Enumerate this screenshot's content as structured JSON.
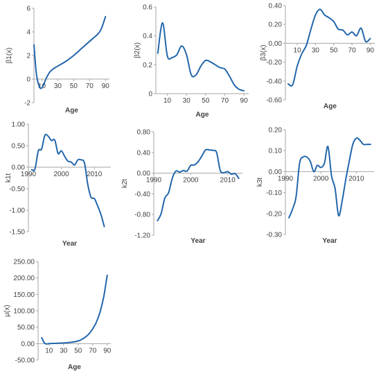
{
  "style": {
    "line_color": "#2166ac",
    "axis_color": "#a6a6a6",
    "text_color": "#404040"
  },
  "chart_data": [
    {
      "id": "beta1",
      "type": "line",
      "title": "",
      "xlabel": "Age",
      "ylabel": "β1(x)",
      "xlim": [
        0,
        95
      ],
      "ylim": [
        -2,
        6
      ],
      "xticks": [
        10,
        30,
        50,
        70,
        90
      ],
      "xtick_labels": [
        "10",
        "30",
        "50",
        "70",
        "90"
      ],
      "yticks": [
        -2,
        0,
        2,
        4,
        6
      ],
      "ytick_labels": [
        "-2",
        "0",
        "2",
        "4",
        "6"
      ],
      "x_axis_at": 0,
      "grid": false,
      "legend": "none",
      "series": [
        {
          "x": [
            0,
            3,
            6,
            9,
            12,
            15,
            20,
            25,
            30,
            40,
            50,
            60,
            70,
            80,
            85,
            90
          ],
          "y": [
            2.9,
            0.5,
            -0.5,
            -0.8,
            -0.5,
            0.0,
            0.6,
            0.9,
            1.1,
            1.5,
            2.0,
            2.6,
            3.2,
            3.8,
            4.3,
            5.3
          ]
        }
      ]
    },
    {
      "id": "beta2",
      "type": "line",
      "title": "",
      "xlabel": "Age",
      "ylabel": "β2(x)",
      "xlim": [
        -2,
        95
      ],
      "ylim": [
        0,
        0.6
      ],
      "xticks": [
        10,
        30,
        50,
        70,
        90
      ],
      "xtick_labels": [
        "10",
        "30",
        "50",
        "70",
        "90"
      ],
      "yticks": [
        0,
        0.2,
        0.4,
        0.6
      ],
      "ytick_labels": [
        "0",
        "0.2",
        "0.4",
        "0.6"
      ],
      "x_axis_at": 0,
      "grid": false,
      "legend": "none",
      "series": [
        {
          "x": [
            0,
            5,
            10,
            15,
            20,
            25,
            30,
            35,
            40,
            45,
            50,
            55,
            60,
            65,
            70,
            75,
            80,
            85,
            90
          ],
          "y": [
            0.28,
            0.49,
            0.26,
            0.25,
            0.27,
            0.33,
            0.27,
            0.13,
            0.13,
            0.19,
            0.23,
            0.22,
            0.2,
            0.18,
            0.17,
            0.12,
            0.06,
            0.03,
            0.02
          ]
        }
      ]
    },
    {
      "id": "beta3",
      "type": "line",
      "title": "",
      "xlabel": "Age",
      "ylabel": "β3(x)",
      "xlim": [
        -3,
        95
      ],
      "ylim": [
        -0.6,
        0.4
      ],
      "xticks": [
        10,
        30,
        50,
        70,
        90
      ],
      "xtick_labels": [
        "10",
        "30",
        "50",
        "70",
        "90"
      ],
      "yticks": [
        -0.6,
        -0.4,
        -0.2,
        0,
        0.2,
        0.4
      ],
      "ytick_labels": [
        "-0.60",
        "-0.40",
        "-0.20",
        "0.00",
        "0.20",
        "0.40"
      ],
      "x_axis_at": 0,
      "grid": false,
      "legend": "none",
      "series": [
        {
          "x": [
            0,
            5,
            10,
            15,
            20,
            25,
            30,
            35,
            40,
            45,
            50,
            55,
            60,
            65,
            70,
            75,
            80,
            85,
            90
          ],
          "y": [
            -0.43,
            -0.44,
            -0.24,
            -0.11,
            -0.02,
            0.15,
            0.3,
            0.36,
            0.3,
            0.27,
            0.23,
            0.15,
            0.14,
            0.09,
            0.12,
            0.08,
            0.16,
            0.02,
            0.05
          ]
        }
      ]
    },
    {
      "id": "k1t",
      "type": "line",
      "title": "",
      "xlabel": "Year",
      "ylabel": "k1t",
      "xlim": [
        1990,
        2015
      ],
      "ylim": [
        -1.5,
        1.0
      ],
      "xticks": [
        1990,
        2000,
        2010
      ],
      "xtick_labels": [
        "1990",
        "2000",
        "2010"
      ],
      "yticks": [
        -1.5,
        -1.0,
        -0.5,
        0,
        0.5,
        1.0
      ],
      "ytick_labels": [
        "-1.50",
        "-1.00",
        "-0.50",
        "0.00",
        "0.50",
        "1.00"
      ],
      "x_axis_at": 0,
      "grid": false,
      "legend": "none",
      "series": [
        {
          "x": [
            1991,
            1992,
            1993,
            1994,
            1995,
            1996,
            1997,
            1998,
            1999,
            2000,
            2001,
            2002,
            2003,
            2004,
            2005,
            2006,
            2007,
            2008,
            2009,
            2010,
            2011,
            2012,
            2013
          ],
          "y": [
            -0.06,
            -0.04,
            0.38,
            0.42,
            0.74,
            0.72,
            0.62,
            0.63,
            0.32,
            0.38,
            0.25,
            0.14,
            0.12,
            0.05,
            0.17,
            0.17,
            0.1,
            -0.4,
            -0.7,
            -0.73,
            -0.9,
            -1.1,
            -1.38
          ]
        }
      ]
    },
    {
      "id": "k2t",
      "type": "line",
      "title": "",
      "xlabel": "Year",
      "ylabel": "k2t",
      "xlim": [
        1990,
        2014
      ],
      "ylim": [
        -1.2,
        0.8
      ],
      "xticks": [
        1990,
        2000,
        2010
      ],
      "xtick_labels": [
        "1990",
        "2000",
        "2010"
      ],
      "yticks": [
        -1.2,
        -0.8,
        -0.4,
        0,
        0.4,
        0.8
      ],
      "ytick_labels": [
        "-1.20",
        "-0.80",
        "-0.40",
        "0.00",
        "0.40",
        "0.80"
      ],
      "x_axis_at": 0,
      "grid": false,
      "legend": "none",
      "series": [
        {
          "x": [
            1991,
            1992,
            1993,
            1994,
            1995,
            1996,
            1997,
            1998,
            1999,
            2000,
            2001,
            2002,
            2003,
            2004,
            2005,
            2006,
            2007,
            2008,
            2009,
            2010,
            2011,
            2012,
            2013
          ],
          "y": [
            -0.92,
            -0.78,
            -0.48,
            -0.38,
            -0.1,
            0.04,
            0.02,
            0.05,
            0.04,
            0.15,
            0.16,
            0.22,
            0.33,
            0.45,
            0.45,
            0.44,
            0.4,
            0.05,
            0.01,
            0.03,
            -0.02,
            -0.01,
            -0.1
          ]
        }
      ]
    },
    {
      "id": "k3t",
      "type": "line",
      "title": "",
      "xlabel": "Year",
      "ylabel": "k3t",
      "xlim": [
        1990,
        2015
      ],
      "ylim": [
        -0.3,
        0.2
      ],
      "xticks": [
        1990,
        2000,
        2010
      ],
      "xtick_labels": [
        "1990",
        "2000",
        "2010"
      ],
      "yticks": [
        -0.3,
        -0.2,
        -0.1,
        0,
        0.1,
        0.2
      ],
      "ytick_labels": [
        "-0.30",
        "-0.20",
        "-0.10",
        "0.00",
        "0.10",
        "0.20"
      ],
      "x_axis_at": 0,
      "grid": false,
      "legend": "none",
      "series": [
        {
          "x": [
            1991,
            1992,
            1993,
            1994,
            1995,
            1996,
            1997,
            1998,
            1999,
            2000,
            2001,
            2002,
            2003,
            2004,
            2005,
            2006,
            2007,
            2008,
            2009,
            2010,
            2011,
            2012,
            2013,
            2014
          ],
          "y": [
            -0.22,
            -0.18,
            -0.12,
            0.04,
            0.07,
            0.07,
            0.05,
            0.0,
            0.03,
            0.02,
            0.04,
            0.12,
            -0.02,
            -0.08,
            -0.21,
            -0.14,
            -0.04,
            0.05,
            0.13,
            0.16,
            0.15,
            0.13,
            0.13,
            0.13
          ]
        }
      ]
    },
    {
      "id": "mu",
      "type": "line",
      "title": "",
      "xlabel": "Age",
      "ylabel": "μ(x)",
      "xlim": [
        -5,
        95
      ],
      "ylim": [
        -50,
        250
      ],
      "xticks": [
        10,
        30,
        50,
        70,
        90
      ],
      "xtick_labels": [
        "10",
        "30",
        "50",
        "70",
        "90"
      ],
      "yticks": [
        -50,
        0,
        50,
        100,
        150,
        200,
        250
      ],
      "ytick_labels": [
        "-50.00",
        "0.00",
        "50.00",
        "100.00",
        "150.00",
        "200.00",
        "250.00"
      ],
      "x_axis_at": 0,
      "grid": false,
      "legend": "none",
      "series": [
        {
          "x": [
            0,
            3,
            6,
            10,
            20,
            30,
            40,
            50,
            55,
            60,
            65,
            70,
            75,
            80,
            85,
            88,
            90
          ],
          "y": [
            18,
            4,
            -1,
            0,
            1,
            2,
            4,
            8,
            13,
            20,
            30,
            45,
            65,
            95,
            140,
            180,
            208
          ]
        }
      ]
    }
  ]
}
